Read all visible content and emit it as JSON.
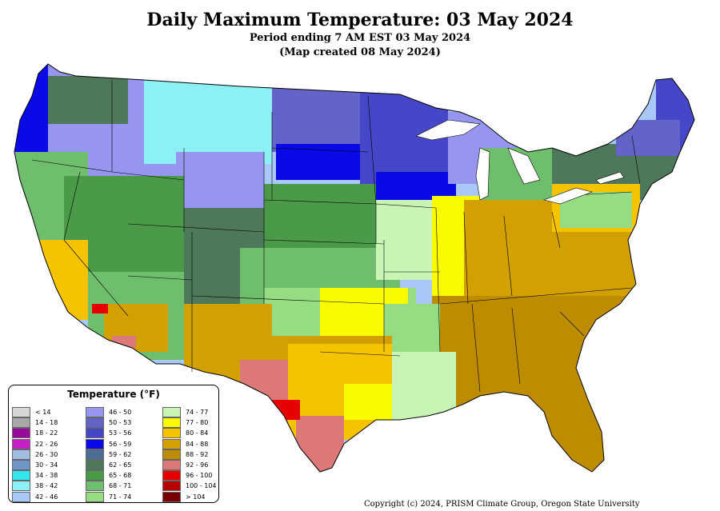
{
  "header": {
    "title": "Daily Maximum Temperature: 03 May 2024",
    "subtitle": "Period ending 7 AM EST 03 May 2024",
    "created": "(Map created 08 May 2024)"
  },
  "legend": {
    "title": "Temperature (°F)",
    "items": [
      {
        "label": "< 14",
        "color": "#d6d6d6"
      },
      {
        "label": "14 - 18",
        "color": "#a8a8a8"
      },
      {
        "label": "18 - 22",
        "color": "#9a0a9a"
      },
      {
        "label": "22 - 26",
        "color": "#c81ec8"
      },
      {
        "label": "26 - 30",
        "color": "#a0bee0"
      },
      {
        "label": "30 - 34",
        "color": "#6e96c8"
      },
      {
        "label": "34 - 38",
        "color": "#32e6f0"
      },
      {
        "label": "38 - 42",
        "color": "#8cf0f5"
      },
      {
        "label": "42 - 46",
        "color": "#a8c8f8"
      },
      {
        "label": "46 - 50",
        "color": "#9696f0"
      },
      {
        "label": "50 - 53",
        "color": "#6464c8"
      },
      {
        "label": "53 - 56",
        "color": "#4646c8"
      },
      {
        "label": "56 - 59",
        "color": "#0a0ae6"
      },
      {
        "label": "59 - 62",
        "color": "#4a6e96"
      },
      {
        "label": "62 - 65",
        "color": "#4e785a"
      },
      {
        "label": "65 - 68",
        "color": "#4a9a4a"
      },
      {
        "label": "68 - 71",
        "color": "#6ebe6e"
      },
      {
        "label": "71 - 74",
        "color": "#96dc82"
      },
      {
        "label": "74 - 77",
        "color": "#c8f5b4"
      },
      {
        "label": "77 - 80",
        "color": "#fafa00"
      },
      {
        "label": "80 - 84",
        "color": "#f5c300"
      },
      {
        "label": "84 - 88",
        "color": "#d2a000"
      },
      {
        "label": "88 - 92",
        "color": "#be8c00"
      },
      {
        "label": "92 - 96",
        "color": "#dc7878"
      },
      {
        "label": "96 - 100",
        "color": "#e60000"
      },
      {
        "label": "100 - 104",
        "color": "#b40000"
      },
      {
        "label": "> 104",
        "color": "#780000"
      }
    ]
  },
  "footer": {
    "copyright": "Copyright (c) 2024, PRISM Climate Group, Oregon State University"
  }
}
